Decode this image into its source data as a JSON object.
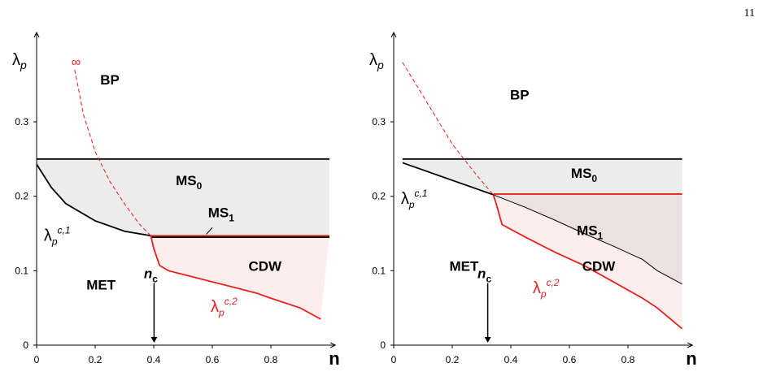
{
  "page_number": "11",
  "chart_data": [
    {
      "type": "line",
      "x_label": "n",
      "y_label": {
        "text": "λ",
        "sub": "p"
      },
      "xlim": [
        0,
        1.02
      ],
      "ylim": [
        0,
        0.42
      ],
      "xticks": [
        0,
        0.2,
        0.4,
        0.6,
        0.8
      ],
      "yticks": [
        0,
        0.1,
        0.2,
        0.3
      ],
      "series": [
        {
          "color": "#000000",
          "x": [
            0,
            1.0
          ],
          "values": [
            0.25,
            0.25
          ]
        },
        {
          "color": "#000000",
          "x": [
            0,
            0.05,
            0.1,
            0.2,
            0.3,
            0.39
          ],
          "values": [
            0.243,
            0.212,
            0.19,
            0.167,
            0.153,
            0.147
          ]
        },
        {
          "color": "#e8201e",
          "x": [
            0.39,
            1.0
          ],
          "values": [
            0.147,
            0.147
          ]
        },
        {
          "color": "#000000",
          "x": [
            0.39,
            1.0
          ],
          "values": [
            0.145,
            0.145
          ]
        },
        {
          "color": "#e8201e",
          "x": [
            0.39,
            0.4,
            0.42,
            0.45,
            0.55,
            0.65,
            0.75,
            0.8,
            0.9,
            0.97
          ],
          "values": [
            0.147,
            0.13,
            0.107,
            0.1,
            0.09,
            0.08,
            0.07,
            0.063,
            0.05,
            0.035
          ]
        },
        {
          "color": "#e8201e",
          "dashed": true,
          "x": [
            0.13,
            0.16,
            0.2,
            0.25,
            0.3,
            0.35,
            0.39
          ],
          "values": [
            0.37,
            0.31,
            0.26,
            0.22,
            0.19,
            0.163,
            0.147
          ]
        }
      ],
      "annotations": [
        {
          "text": "BP"
        },
        {
          "text": "MS",
          "sub": "0"
        },
        {
          "text": "MS",
          "sub": "1"
        },
        {
          "text": "λ",
          "sub": "p",
          "sup": "c,1"
        },
        {
          "text": "MET"
        },
        {
          "text": "CDW"
        },
        {
          "text": "λ",
          "sub": "p",
          "sup": "c,2",
          "color": "#e8201e"
        },
        {
          "text": "∞",
          "color": "#e8201e"
        },
        {
          "text": "n",
          "sub": "c"
        }
      ]
    },
    {
      "type": "line",
      "x_label": "n",
      "y_label": {
        "text": "λ",
        "sub": "p"
      },
      "xlim": [
        0,
        1.02
      ],
      "ylim": [
        0,
        0.42
      ],
      "xticks": [
        0,
        0.2,
        0.4,
        0.6,
        0.8
      ],
      "yticks": [
        0,
        0.1,
        0.2,
        0.3
      ],
      "series": [
        {
          "color": "#000000",
          "x": [
            0.03,
            0.985
          ],
          "values": [
            0.25,
            0.25
          ]
        },
        {
          "color": "#000000",
          "x": [
            0.03,
            0.34
          ],
          "values": [
            0.245,
            0.202
          ]
        },
        {
          "color": "#e8201e",
          "x": [
            0.34,
            0.985
          ],
          "values": [
            0.203,
            0.203
          ]
        },
        {
          "color": "#000000",
          "x": [
            0.34,
            0.45,
            0.55,
            0.65,
            0.75,
            0.85,
            0.9,
            0.985
          ],
          "values": [
            0.202,
            0.185,
            0.168,
            0.15,
            0.133,
            0.115,
            0.1,
            0.082
          ]
        },
        {
          "color": "#e8201e",
          "x": [
            0.34,
            0.35,
            0.37,
            0.45,
            0.55,
            0.65,
            0.75,
            0.85,
            0.9,
            0.985
          ],
          "values": [
            0.202,
            0.19,
            0.162,
            0.145,
            0.125,
            0.107,
            0.085,
            0.063,
            0.05,
            0.022
          ]
        },
        {
          "color": "#e8201e",
          "dashed": true,
          "x": [
            0.03,
            0.1,
            0.2,
            0.28,
            0.34
          ],
          "values": [
            0.38,
            0.335,
            0.27,
            0.23,
            0.202
          ]
        }
      ],
      "annotations": [
        {
          "text": "BP"
        },
        {
          "text": "MS",
          "sub": "0"
        },
        {
          "text": "MS",
          "sub": "1"
        },
        {
          "text": "λ",
          "sub": "p",
          "sup": "c,1"
        },
        {
          "text": "MET"
        },
        {
          "text": "CDW"
        },
        {
          "text": "λ",
          "sub": "p",
          "sup": "c,2",
          "color": "#e8201e"
        },
        {
          "text": "n",
          "sub": "c"
        }
      ]
    }
  ]
}
